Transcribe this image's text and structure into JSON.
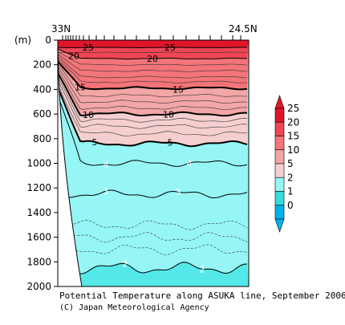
{
  "chart_data": {
    "type": "contour",
    "title": "Potential Temperature along ASUKA line, September 2006",
    "credit": "(C) Japan Meteorological Agency",
    "x_start_label": "33N",
    "x_end_label": "24.5N",
    "y_unit_label": "(m)",
    "y_ticks": [
      "0",
      "200",
      "400",
      "600",
      "800",
      "1000",
      "1200",
      "1400",
      "1600",
      "1800",
      "2000"
    ],
    "ylim": [
      2000,
      0
    ],
    "colorbar": {
      "levels": [
        "25",
        "20",
        "15",
        "10",
        "5",
        "2",
        "1",
        "0"
      ],
      "colors": [
        "#e0152a",
        "#f04555",
        "#f37479",
        "#f2a6a6",
        "#f5cfcf",
        "#96f5f5",
        "#35dcdc",
        "#00b3ea"
      ]
    },
    "isotherms": [
      {
        "temp": 25,
        "depth_m": 60,
        "style": "solid",
        "labels": [
          "25",
          "25",
          "25"
        ]
      },
      {
        "temp": 20,
        "depth_m": 150,
        "style": "solid",
        "labels": [
          "20",
          "20"
        ]
      },
      {
        "temp": 15,
        "depth_m": 390,
        "style": "bold",
        "labels": [
          "15",
          "15"
        ]
      },
      {
        "temp": 10,
        "depth_m": 600,
        "style": "bold",
        "labels": [
          "10",
          "10"
        ]
      },
      {
        "temp": 5,
        "depth_m": 840,
        "style": "bold",
        "labels": [
          "5",
          "5"
        ]
      },
      {
        "temp": 4,
        "depth_m": 1000,
        "style": "solid",
        "labels": [
          "4",
          "4"
        ]
      },
      {
        "temp": 3,
        "depth_m": 1250,
        "style": "solid",
        "labels": [
          "3",
          "3"
        ]
      },
      {
        "temp": 2,
        "depth_m": 1850,
        "style": "solid",
        "labels": [
          "2",
          "2"
        ]
      }
    ]
  }
}
